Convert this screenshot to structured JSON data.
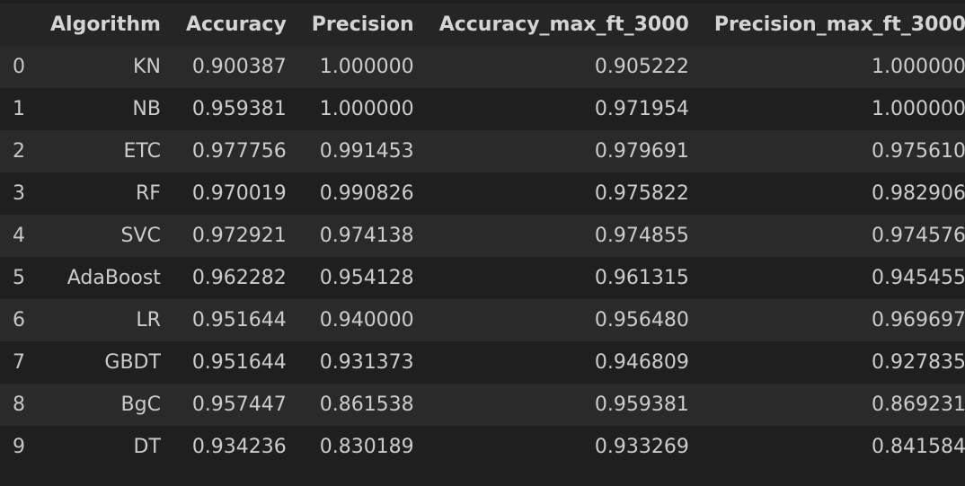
{
  "table": {
    "columns": {
      "index": "",
      "algorithm": "Algorithm",
      "accuracy": "Accuracy",
      "precision": "Precision",
      "accuracy_3000": "Accuracy_max_ft_3000",
      "precision_3000": "Precision_max_ft_3000"
    },
    "rows": [
      {
        "index": "0",
        "algorithm": "KN",
        "accuracy": "0.900387",
        "precision": "1.000000",
        "accuracy_3000": "0.905222",
        "precision_3000": "1.000000"
      },
      {
        "index": "1",
        "algorithm": "NB",
        "accuracy": "0.959381",
        "precision": "1.000000",
        "accuracy_3000": "0.971954",
        "precision_3000": "1.000000"
      },
      {
        "index": "2",
        "algorithm": "ETC",
        "accuracy": "0.977756",
        "precision": "0.991453",
        "accuracy_3000": "0.979691",
        "precision_3000": "0.975610"
      },
      {
        "index": "3",
        "algorithm": "RF",
        "accuracy": "0.970019",
        "precision": "0.990826",
        "accuracy_3000": "0.975822",
        "precision_3000": "0.982906"
      },
      {
        "index": "4",
        "algorithm": "SVC",
        "accuracy": "0.972921",
        "precision": "0.974138",
        "accuracy_3000": "0.974855",
        "precision_3000": "0.974576"
      },
      {
        "index": "5",
        "algorithm": "AdaBoost",
        "accuracy": "0.962282",
        "precision": "0.954128",
        "accuracy_3000": "0.961315",
        "precision_3000": "0.945455"
      },
      {
        "index": "6",
        "algorithm": "LR",
        "accuracy": "0.951644",
        "precision": "0.940000",
        "accuracy_3000": "0.956480",
        "precision_3000": "0.969697"
      },
      {
        "index": "7",
        "algorithm": "GBDT",
        "accuracy": "0.951644",
        "precision": "0.931373",
        "accuracy_3000": "0.946809",
        "precision_3000": "0.927835"
      },
      {
        "index": "8",
        "algorithm": "BgC",
        "accuracy": "0.957447",
        "precision": "0.861538",
        "accuracy_3000": "0.959381",
        "precision_3000": "0.869231"
      },
      {
        "index": "9",
        "algorithm": "DT",
        "accuracy": "0.934236",
        "precision": "0.830189",
        "accuracy_3000": "0.933269",
        "precision_3000": "0.841584"
      }
    ]
  }
}
